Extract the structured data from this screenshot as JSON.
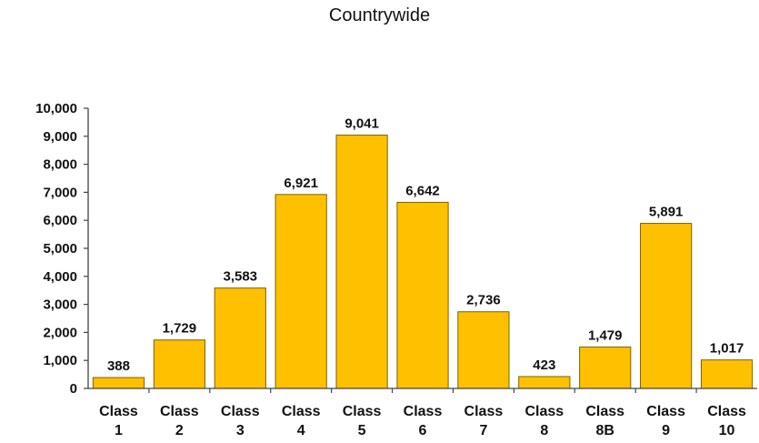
{
  "chart_data": {
    "type": "bar",
    "title": "Countrywide",
    "categories": [
      [
        "Class",
        "1"
      ],
      [
        "Class",
        "2"
      ],
      [
        "Class",
        "3"
      ],
      [
        "Class",
        "4"
      ],
      [
        "Class",
        "5"
      ],
      [
        "Class",
        "6"
      ],
      [
        "Class",
        "7"
      ],
      [
        "Class",
        "8"
      ],
      [
        "Class",
        "8B"
      ],
      [
        "Class",
        "9"
      ],
      [
        "Class",
        "10"
      ]
    ],
    "values": [
      388,
      1729,
      3583,
      6921,
      9041,
      6642,
      2736,
      423,
      1479,
      5891,
      1017
    ],
    "value_labels": [
      "388",
      "1,729",
      "3,583",
      "6,921",
      "9,041",
      "6,642",
      "2,736",
      "423",
      "1,479",
      "5,891",
      "1,017"
    ],
    "y_ticks": [
      "0",
      "1,000",
      "2,000",
      "3,000",
      "4,000",
      "5,000",
      "6,000",
      "7,000",
      "8,000",
      "9,000",
      "10,000"
    ],
    "ylim": [
      0,
      10000
    ],
    "bar_color": "#FFC000",
    "bar_edge_color": "#7A6200",
    "grid": false,
    "legend": "none"
  }
}
